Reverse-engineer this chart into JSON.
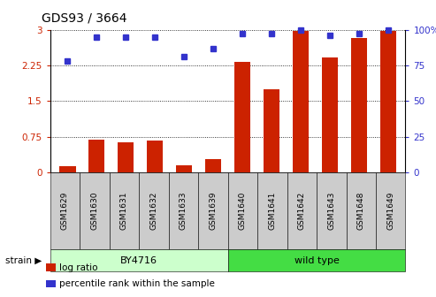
{
  "title": "GDS93 / 3664",
  "categories": [
    "GSM1629",
    "GSM1630",
    "GSM1631",
    "GSM1632",
    "GSM1633",
    "GSM1639",
    "GSM1640",
    "GSM1641",
    "GSM1642",
    "GSM1643",
    "GSM1648",
    "GSM1649"
  ],
  "log_ratio": [
    0.12,
    0.68,
    0.63,
    0.67,
    0.15,
    0.28,
    2.32,
    1.75,
    2.97,
    2.42,
    2.82,
    2.97
  ],
  "percentile_rank": [
    78,
    95,
    95,
    95,
    81,
    87,
    97,
    97,
    100,
    96,
    97,
    100
  ],
  "bar_color": "#cc2200",
  "dot_color": "#3333cc",
  "groups": [
    {
      "label": "BY4716",
      "start": 0,
      "end": 6,
      "color": "#ccffcc"
    },
    {
      "label": "wild type",
      "start": 6,
      "end": 12,
      "color": "#44dd44"
    }
  ],
  "ylim_left": [
    0,
    3
  ],
  "ylim_right": [
    0,
    100
  ],
  "yticks_left": [
    0,
    0.75,
    1.5,
    2.25,
    3
  ],
  "yticks_right": [
    0,
    25,
    50,
    75,
    100
  ],
  "left_tick_color": "#cc2200",
  "right_tick_color": "#3333cc",
  "strain_label": "strain",
  "legend_items": [
    {
      "label": "log ratio",
      "color": "#cc2200"
    },
    {
      "label": "percentile rank within the sample",
      "color": "#3333cc"
    }
  ],
  "bg_color": "#ffffff",
  "tick_area_color": "#cccccc",
  "bar_width": 0.55
}
